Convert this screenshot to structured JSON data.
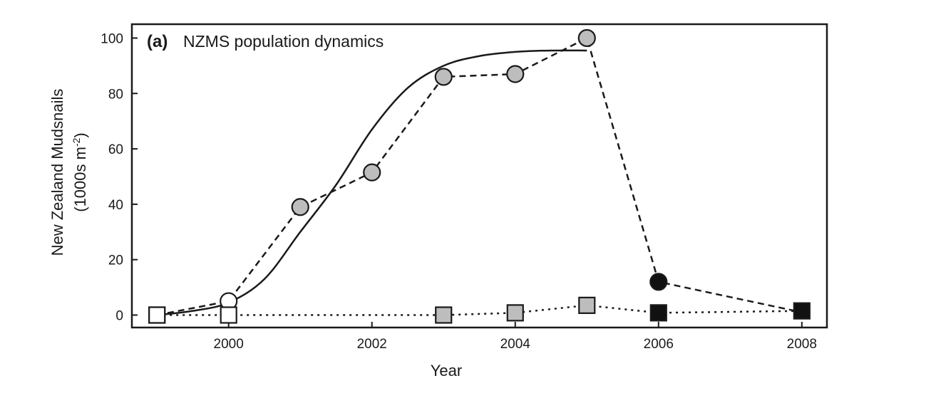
{
  "chart_data": {
    "type": "line",
    "panel_label": "(a)",
    "title": "NZMS population dynamics",
    "xlabel": "Year",
    "ylabel_line1": "New Zealand Mudsnails",
    "ylabel_line2_prefix": "(1000s  m",
    "ylabel_line2_sup": "-2",
    "ylabel_line2_suffix": ")",
    "xlim": [
      1998.65,
      2008.35
    ],
    "ylim": [
      -4.5,
      105
    ],
    "xticks": [
      2000,
      2002,
      2004,
      2006,
      2008
    ],
    "xtick_labels": [
      "2000",
      "2002",
      "2004",
      "2006",
      "2008"
    ],
    "yticks": [
      0,
      20,
      40,
      60,
      80,
      100
    ],
    "ytick_labels": [
      "0",
      "20",
      "40",
      "60",
      "80",
      "100"
    ],
    "grid": false,
    "colors": {
      "axis": "#1a1a1a",
      "grey_fill": "#bdbdbd",
      "white_fill": "#ffffff",
      "black_fill": "#111111"
    },
    "series": [
      {
        "style": "solid-curve",
        "x": [
          1999.0,
          1999.5,
          2000.0,
          2000.5,
          2001.0,
          2001.5,
          2002.0,
          2002.5,
          2003.0,
          2003.5,
          2004.0,
          2004.5,
          2005.0
        ],
        "y": [
          0,
          1.5,
          4.5,
          13,
          30,
          47,
          67,
          82,
          90,
          93.5,
          95,
          95.5,
          95.5
        ]
      },
      {
        "style": "dashed",
        "points": [
          {
            "x": 1999.0,
            "y": 0,
            "marker": "square",
            "fill": "white"
          },
          {
            "x": 2000.0,
            "y": 5,
            "marker": "circle",
            "fill": "white"
          },
          {
            "x": 2001.0,
            "y": 39,
            "marker": "circle",
            "fill": "grey"
          },
          {
            "x": 2002.0,
            "y": 51.5,
            "marker": "circle",
            "fill": "grey"
          },
          {
            "x": 2003.0,
            "y": 86,
            "marker": "circle",
            "fill": "grey"
          },
          {
            "x": 2004.0,
            "y": 87,
            "marker": "circle",
            "fill": "grey"
          },
          {
            "x": 2005.0,
            "y": 100,
            "marker": "circle",
            "fill": "grey"
          },
          {
            "x": 2006.0,
            "y": 12,
            "marker": "circle",
            "fill": "black"
          },
          {
            "x": 2008.0,
            "y": 1,
            "marker": "none",
            "fill": "none"
          }
        ]
      },
      {
        "style": "dotted",
        "points": [
          {
            "x": 1999.0,
            "y": 0,
            "marker": "square",
            "fill": "white"
          },
          {
            "x": 2000.0,
            "y": 0,
            "marker": "square",
            "fill": "white"
          },
          {
            "x": 2003.0,
            "y": 0,
            "marker": "square",
            "fill": "grey"
          },
          {
            "x": 2004.0,
            "y": 0.8,
            "marker": "square",
            "fill": "grey"
          },
          {
            "x": 2005.0,
            "y": 3.5,
            "marker": "square",
            "fill": "grey"
          },
          {
            "x": 2006.0,
            "y": 0.8,
            "marker": "square",
            "fill": "black"
          },
          {
            "x": 2008.0,
            "y": 1.5,
            "marker": "square",
            "fill": "black"
          }
        ]
      }
    ]
  }
}
